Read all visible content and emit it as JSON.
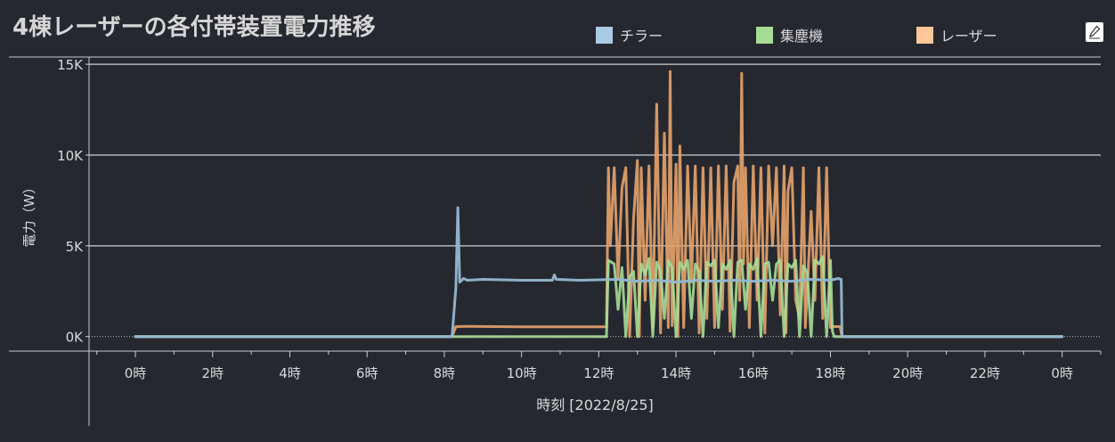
{
  "title": "4棟レーザーの各付帯装置電力推移",
  "legend": [
    {
      "name": "チラー",
      "color": "#a9cbe3"
    },
    {
      "name": "集塵機",
      "color": "#a7dc96"
    },
    {
      "name": "レーザー",
      "color": "#fcc89a"
    }
  ],
  "edit_icon": "pencil-icon",
  "chart_data": {
    "type": "line",
    "xlabel": "時刻 [2022/8/25]",
    "ylabel": "電力（W）",
    "x_unit": "hour",
    "xlim": [
      -1.2,
      25
    ],
    "ylim": [
      -800,
      15300
    ],
    "y_ticks": [
      {
        "value": 0,
        "label": "0K"
      },
      {
        "value": 5000,
        "label": "5K"
      },
      {
        "value": 10000,
        "label": "10K"
      },
      {
        "value": 15000,
        "label": "15K"
      }
    ],
    "x_ticks": [
      {
        "value": 0,
        "label": "0時"
      },
      {
        "value": 2,
        "label": "2時"
      },
      {
        "value": 4,
        "label": "4時"
      },
      {
        "value": 6,
        "label": "6時"
      },
      {
        "value": 8,
        "label": "8時"
      },
      {
        "value": 10,
        "label": "10時"
      },
      {
        "value": 12,
        "label": "12時"
      },
      {
        "value": 14,
        "label": "14時"
      },
      {
        "value": 16,
        "label": "16時"
      },
      {
        "value": 18,
        "label": "18時"
      },
      {
        "value": 20,
        "label": "20時"
      },
      {
        "value": 22,
        "label": "22時"
      },
      {
        "value": 24,
        "label": "0時"
      }
    ],
    "grid": true,
    "legend_position": "top-right",
    "series": [
      {
        "name": "レーザー",
        "color": "#e7a36b",
        "points": [
          [
            0,
            0
          ],
          [
            8.2,
            0
          ],
          [
            8.3,
            550
          ],
          [
            8.6,
            560
          ],
          [
            10,
            540
          ],
          [
            12.2,
            540
          ],
          [
            12.25,
            9300
          ],
          [
            12.3,
            5000
          ],
          [
            12.4,
            9300
          ],
          [
            12.5,
            3200
          ],
          [
            12.6,
            8200
          ],
          [
            12.7,
            9300
          ],
          [
            12.8,
            0
          ],
          [
            12.9,
            6500
          ],
          [
            13.0,
            9700
          ],
          [
            13.05,
            0
          ],
          [
            13.1,
            9300
          ],
          [
            13.2,
            2000
          ],
          [
            13.3,
            9400
          ],
          [
            13.4,
            500
          ],
          [
            13.5,
            12800
          ],
          [
            13.6,
            200
          ],
          [
            13.7,
            11200
          ],
          [
            13.8,
            500
          ],
          [
            13.85,
            14600
          ],
          [
            13.9,
            600
          ],
          [
            14.0,
            9500
          ],
          [
            14.05,
            0
          ],
          [
            14.1,
            10500
          ],
          [
            14.2,
            500
          ],
          [
            14.3,
            9400
          ],
          [
            14.4,
            3000
          ],
          [
            14.5,
            9400
          ],
          [
            14.6,
            200
          ],
          [
            14.7,
            9300
          ],
          [
            14.8,
            1000
          ],
          [
            14.9,
            9300
          ],
          [
            15.0,
            500
          ],
          [
            15.1,
            9400
          ],
          [
            15.2,
            1500
          ],
          [
            15.3,
            9400
          ],
          [
            15.4,
            300
          ],
          [
            15.5,
            8500
          ],
          [
            15.6,
            9400
          ],
          [
            15.65,
            2000
          ],
          [
            15.7,
            14500
          ],
          [
            15.75,
            4000
          ],
          [
            15.8,
            9300
          ],
          [
            15.9,
            500
          ],
          [
            16.0,
            9400
          ],
          [
            16.1,
            2000
          ],
          [
            16.2,
            9300
          ],
          [
            16.3,
            200
          ],
          [
            16.4,
            9400
          ],
          [
            16.5,
            5000
          ],
          [
            16.6,
            9300
          ],
          [
            16.7,
            1200
          ],
          [
            16.8,
            9400
          ],
          [
            16.85,
            200
          ],
          [
            16.9,
            8000
          ],
          [
            17.0,
            9300
          ],
          [
            17.1,
            2000
          ],
          [
            17.2,
            1000
          ],
          [
            17.3,
            9300
          ],
          [
            17.35,
            500
          ],
          [
            17.5,
            6900
          ],
          [
            17.6,
            2000
          ],
          [
            17.7,
            9300
          ],
          [
            17.8,
            1000
          ],
          [
            17.9,
            9300
          ],
          [
            18.0,
            500
          ],
          [
            18.05,
            550
          ],
          [
            18.25,
            550
          ],
          [
            18.3,
            0
          ],
          [
            24,
            0
          ]
        ]
      },
      {
        "name": "集塵機",
        "color": "#a7dc96",
        "points": [
          [
            0,
            0
          ],
          [
            8.3,
            0
          ],
          [
            8.4,
            0
          ],
          [
            12.2,
            0
          ],
          [
            12.25,
            4200
          ],
          [
            12.4,
            4000
          ],
          [
            12.5,
            1500
          ],
          [
            12.6,
            3800
          ],
          [
            12.7,
            0
          ],
          [
            12.8,
            3300
          ],
          [
            12.9,
            3600
          ],
          [
            13.0,
            0
          ],
          [
            13.1,
            4000
          ],
          [
            13.2,
            3400
          ],
          [
            13.3,
            4300
          ],
          [
            13.4,
            0
          ],
          [
            13.5,
            4100
          ],
          [
            13.6,
            3600
          ],
          [
            13.7,
            1000
          ],
          [
            13.8,
            4200
          ],
          [
            13.9,
            3800
          ],
          [
            14.0,
            0
          ],
          [
            14.1,
            4100
          ],
          [
            14.2,
            3700
          ],
          [
            14.3,
            4200
          ],
          [
            14.4,
            1000
          ],
          [
            14.5,
            4000
          ],
          [
            14.6,
            3600
          ],
          [
            14.7,
            0
          ],
          [
            14.8,
            4100
          ],
          [
            14.9,
            3900
          ],
          [
            15.0,
            4200
          ],
          [
            15.1,
            500
          ],
          [
            15.2,
            4000
          ],
          [
            15.3,
            3700
          ],
          [
            15.4,
            4200
          ],
          [
            15.5,
            0
          ],
          [
            15.6,
            4100
          ],
          [
            15.7,
            4200
          ],
          [
            15.8,
            1500
          ],
          [
            15.9,
            4000
          ],
          [
            16.0,
            3700
          ],
          [
            16.1,
            4300
          ],
          [
            16.2,
            0
          ],
          [
            16.3,
            4000
          ],
          [
            16.4,
            4100
          ],
          [
            16.5,
            2000
          ],
          [
            16.6,
            4000
          ],
          [
            16.7,
            4200
          ],
          [
            16.8,
            0
          ],
          [
            16.9,
            4000
          ],
          [
            17.0,
            3800
          ],
          [
            17.1,
            4200
          ],
          [
            17.2,
            0
          ],
          [
            17.3,
            3900
          ],
          [
            17.4,
            3500
          ],
          [
            17.5,
            0
          ],
          [
            17.6,
            4200
          ],
          [
            17.7,
            4000
          ],
          [
            17.8,
            4400
          ],
          [
            17.9,
            0
          ],
          [
            18.0,
            4200
          ],
          [
            18.05,
            300
          ],
          [
            18.1,
            0
          ],
          [
            24,
            0
          ]
        ]
      },
      {
        "name": "チラー",
        "color": "#93b8d2",
        "points": [
          [
            0,
            0
          ],
          [
            8.2,
            0
          ],
          [
            8.3,
            2700
          ],
          [
            8.35,
            7100
          ],
          [
            8.4,
            3000
          ],
          [
            8.5,
            3200
          ],
          [
            8.6,
            3100
          ],
          [
            9,
            3150
          ],
          [
            10,
            3100
          ],
          [
            10.8,
            3100
          ],
          [
            10.85,
            3400
          ],
          [
            10.9,
            3150
          ],
          [
            11.5,
            3100
          ],
          [
            12.5,
            3150
          ],
          [
            13,
            3050
          ],
          [
            13.5,
            3100
          ],
          [
            14,
            3000
          ],
          [
            14.5,
            3100
          ],
          [
            15,
            3050
          ],
          [
            15.5,
            3100
          ],
          [
            16,
            3050
          ],
          [
            16.5,
            3100
          ],
          [
            17,
            3050
          ],
          [
            17.5,
            3150
          ],
          [
            18,
            3100
          ],
          [
            18.2,
            3200
          ],
          [
            18.28,
            3150
          ],
          [
            18.3,
            0
          ],
          [
            24,
            0
          ]
        ]
      }
    ]
  }
}
